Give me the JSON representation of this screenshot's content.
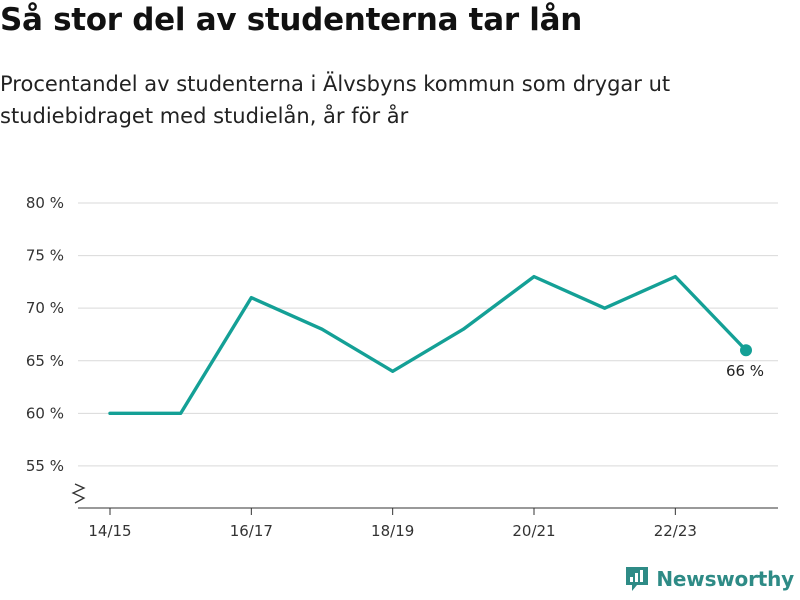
{
  "title": "Så stor del av studenterna tar lån",
  "subtitle": "Procentandel av studenterna i Älvsbyns kommun som drygar ut studiebidraget med studielån, år för år",
  "brand": {
    "name": "Newsworthy",
    "color": "#2e8b86",
    "icon": "newsworthy-logo-icon"
  },
  "colors": {
    "line": "#14a096",
    "grid": "#d9d9d9",
    "axis": "#333333"
  },
  "chart_data": {
    "type": "line",
    "x": [
      "14/15",
      "15/16",
      "16/17",
      "17/18",
      "18/19",
      "19/20",
      "20/21",
      "21/22",
      "22/23",
      "23/24"
    ],
    "x_tick_labels": [
      "14/15",
      "16/17",
      "18/19",
      "20/21",
      "22/23"
    ],
    "series": [
      {
        "values": [
          60,
          60,
          71,
          68,
          64,
          68,
          73,
          70,
          73,
          66
        ]
      }
    ],
    "ylim": [
      51,
      80
    ],
    "y_ticks": [
      55,
      60,
      65,
      70,
      75,
      80
    ],
    "y_tick_labels": [
      "55 %",
      "60 %",
      "65 %",
      "70 %",
      "75 %",
      "80 %"
    ],
    "y_axis_break": true,
    "grid": true,
    "last_point_marker": true,
    "last_value_label": "66 %",
    "xlabel": "",
    "ylabel": ""
  }
}
